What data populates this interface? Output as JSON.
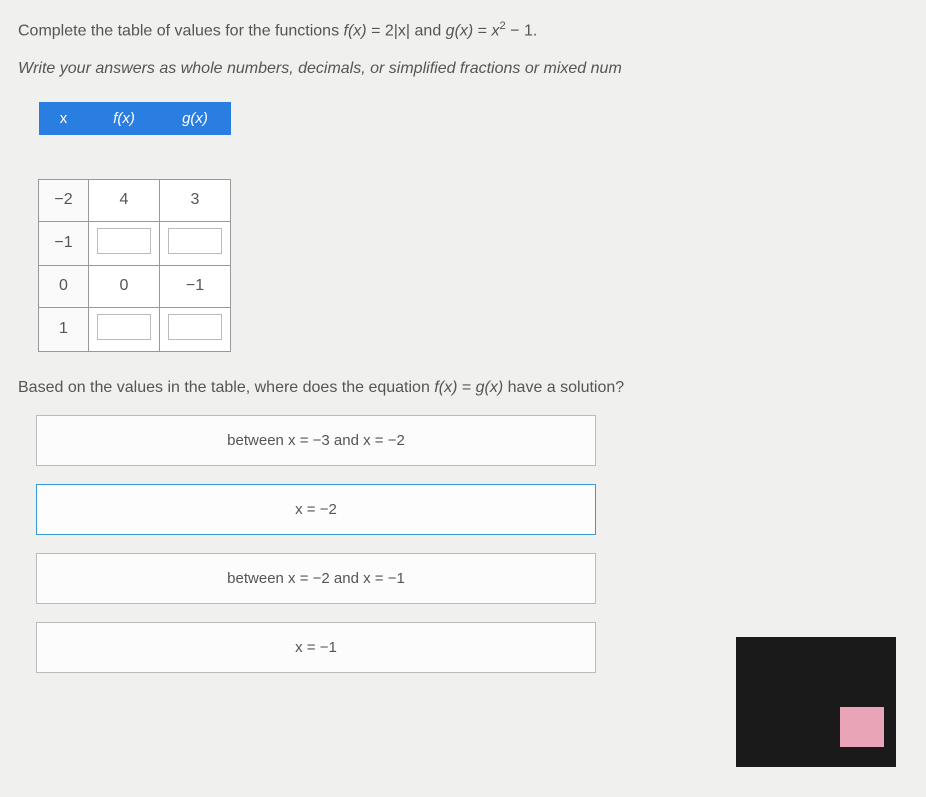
{
  "prompt": {
    "prefix": "Complete the table of values for the functions ",
    "f_label": "f(x)",
    "f_eq": " = 2|x| and ",
    "g_label": "g(x)",
    "g_eq_prefix": " = ",
    "g_var": "x",
    "g_exp": "2",
    "g_suffix": " − 1."
  },
  "instruction": "Write your answers as whole numbers, decimals, or simplified fractions or mixed num",
  "table": {
    "headers": {
      "x": "x",
      "f": "f(x)",
      "g": "g(x)"
    },
    "rows": [
      {
        "x": "−2",
        "f": "4",
        "g": "3",
        "editable": false
      },
      {
        "x": "−1",
        "f": "",
        "g": "",
        "editable": true
      },
      {
        "x": "0",
        "f": "0",
        "g": "−1",
        "editable": false
      },
      {
        "x": "1",
        "f": "",
        "g": "",
        "editable": true
      }
    ]
  },
  "question": {
    "prefix": "Based on the values in the table, where does the equation ",
    "fx": "f(x)",
    "mid": " = ",
    "gx": "g(x)",
    "suffix": " have a solution?"
  },
  "options": [
    {
      "text": "between x = −3 and x = −2",
      "selected": false
    },
    {
      "text": "x = −2",
      "selected": true
    },
    {
      "text": "between x = −2 and x = −1",
      "selected": false
    },
    {
      "text": "x = −1",
      "selected": false
    }
  ],
  "styles": {
    "header_bg": "#2a7de1",
    "header_fg": "#ffffff",
    "page_bg": "#f0f0ee",
    "cell_border": "#999999",
    "option_border": "#bbbbbb",
    "option_selected_border": "#3a99d9"
  }
}
